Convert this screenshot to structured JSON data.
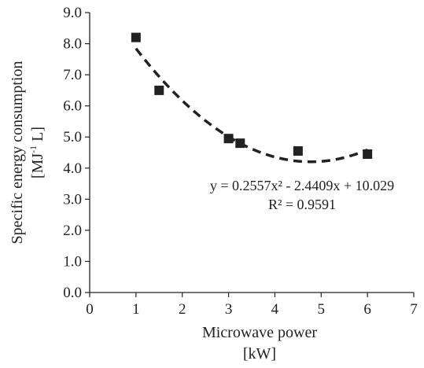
{
  "chart_data": {
    "type": "scatter",
    "xlabel": "Microwave power",
    "xunit": "[kW]",
    "ylabel": "Specific energy consumption",
    "yunit_prefix": "[MJ",
    "yunit_sup": "-1",
    "yunit_suffix": " L]",
    "xlim": [
      0,
      7
    ],
    "ylim": [
      0,
      9
    ],
    "x_ticks": [
      "0",
      "1",
      "2",
      "3",
      "4",
      "5",
      "6",
      "7"
    ],
    "y_ticks": [
      "0.0",
      "1.0",
      "2.0",
      "3.0",
      "4.0",
      "5.0",
      "6.0",
      "7.0",
      "8.0",
      "9.0"
    ],
    "grid": false,
    "series": [
      {
        "x": [
          1.0,
          1.5,
          3.0,
          3.25,
          4.5,
          6.0
        ],
        "y": [
          8.2,
          6.5,
          4.95,
          4.8,
          4.55,
          4.45
        ],
        "marker": "square",
        "color": "#222222"
      }
    ],
    "trendline": {
      "type": "polynomial",
      "order": 2,
      "coefficients": [
        0.2557,
        -2.4409,
        10.029
      ],
      "x_range": [
        1,
        6
      ],
      "style": "dashed",
      "color": "#222222",
      "equation_text": "y = 0.2557x² - 2.4409x + 10.029",
      "r2_text": "R² = 0.9591"
    }
  }
}
